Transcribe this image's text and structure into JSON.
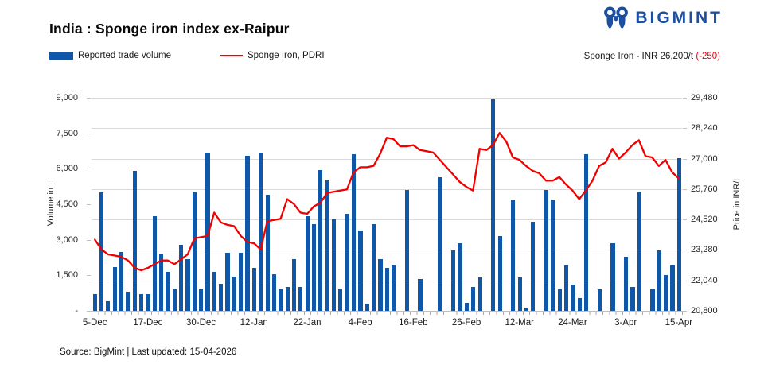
{
  "header": {
    "title": "India : Sponge iron index ex-Raipur",
    "logo_text": "BIGMINT",
    "logo_color": "#1c4fa1"
  },
  "legend": {
    "bar_label": "Reported trade volume",
    "line_label": "Sponge Iron, PDRI"
  },
  "annotation": {
    "price_text": "Sponge Iron - INR 26,200/t ",
    "change_text": "(-250)"
  },
  "footer": {
    "source_text": "Source: BigMint | Last updated: 15-04-2026"
  },
  "colors": {
    "bar": "#0f57a8",
    "line": "#f10000",
    "negative": "#f10000"
  },
  "chart_data": {
    "type": "bar",
    "title": "India : Sponge iron index ex-Raipur",
    "grid": "horizontal",
    "legend_position": "top-left",
    "x_tick_labels": [
      "5-Dec",
      "17-Dec",
      "30-Dec",
      "12-Jan",
      "22-Jan",
      "4-Feb",
      "16-Feb",
      "26-Feb",
      "12-Mar",
      "24-Mar",
      "3-Apr",
      "15-Apr"
    ],
    "x_tick_every": 8,
    "n_slots": 89,
    "left_axis": {
      "title": "Volume in t",
      "min": 0,
      "max": 9000,
      "tick_labels": [
        "9,000",
        "7,500",
        "6,000",
        "4,500",
        "3,000",
        "1,500",
        "-"
      ]
    },
    "right_axis": {
      "title": "Price in INR/t",
      "min": 20800,
      "max": 29480,
      "tick_labels": [
        "29,480",
        "28,240",
        "27,000",
        "25,760",
        "24,520",
        "23,280",
        "22,040",
        "20,800"
      ]
    },
    "series": [
      {
        "name": "Reported trade volume",
        "type": "bar",
        "axis": "left",
        "values": [
          700,
          5000,
          400,
          1850,
          2500,
          800,
          5900,
          700,
          700,
          4000,
          2400,
          1650,
          900,
          2800,
          2200,
          5000,
          900,
          6700,
          1650,
          1150,
          2450,
          1450,
          2450,
          6550,
          1800,
          6700,
          4900,
          1550,
          900,
          1000,
          2200,
          1000,
          4000,
          3650,
          5950,
          5500,
          3850,
          900,
          4100,
          6600,
          3400,
          300,
          3650,
          2200,
          1800,
          1900,
          0,
          5100,
          0,
          1350,
          0,
          0,
          5650,
          0,
          2550,
          2850,
          350,
          1000,
          1400,
          0,
          8950,
          3150,
          0,
          4700,
          1400,
          150,
          3750,
          0,
          5100,
          4700,
          900,
          1900,
          1100,
          550,
          6600,
          0,
          900,
          0,
          2850,
          0,
          2300,
          1000,
          5000,
          0,
          900,
          2550,
          1500,
          1900,
          6450
        ]
      },
      {
        "name": "Sponge Iron, PDRI",
        "type": "line",
        "axis": "right",
        "values": [
          23700,
          23300,
          23100,
          23050,
          23000,
          22850,
          22550,
          22450,
          22550,
          22700,
          22850,
          22850,
          22700,
          22900,
          23100,
          23750,
          23800,
          23850,
          24800,
          24400,
          24300,
          24250,
          23850,
          23600,
          23550,
          23300,
          24450,
          24500,
          24550,
          25350,
          25150,
          24800,
          24750,
          25050,
          25200,
          25600,
          25650,
          25700,
          25750,
          26450,
          26650,
          26650,
          26700,
          27200,
          27850,
          27800,
          27500,
          27500,
          27550,
          27350,
          27300,
          27250,
          26950,
          26650,
          26350,
          26050,
          25850,
          25700,
          27400,
          27350,
          27550,
          28050,
          27700,
          27050,
          26950,
          26700,
          26500,
          26400,
          26100,
          26100,
          26250,
          25950,
          25700,
          25350,
          25700,
          26100,
          26700,
          26850,
          27400,
          27000,
          27250,
          27550,
          27750,
          27100,
          27050,
          26700,
          26950,
          26450,
          26200
        ]
      }
    ]
  }
}
